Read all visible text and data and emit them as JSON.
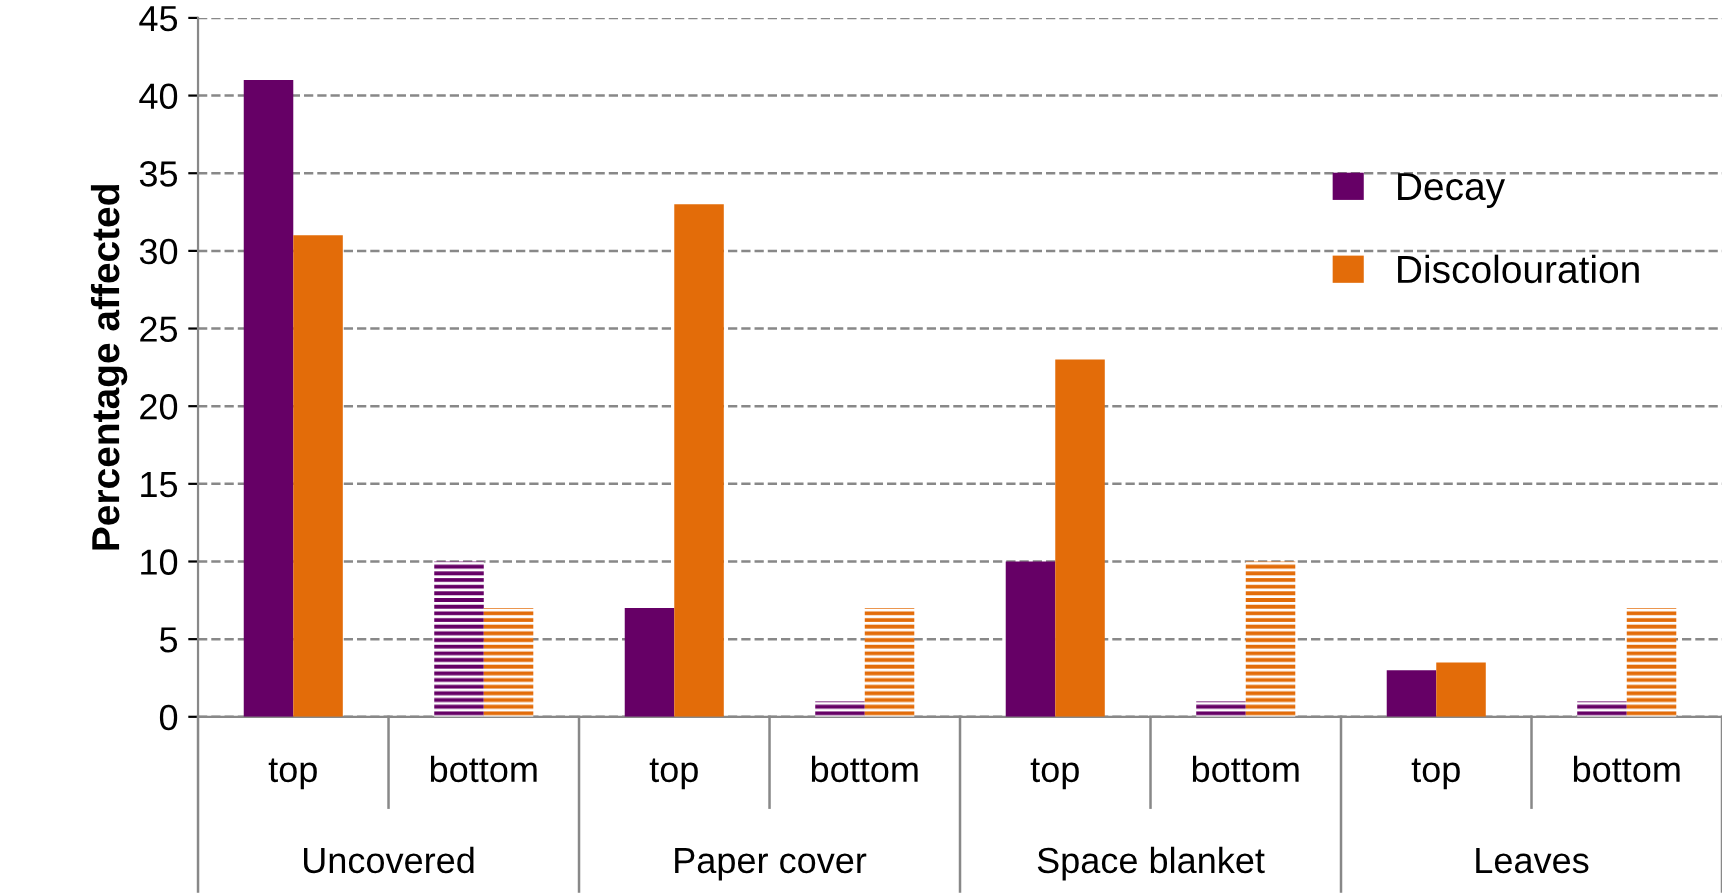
{
  "chart_data": {
    "type": "bar",
    "ylabel": "Percentage affected",
    "categories": [
      "top",
      "bottom",
      "top",
      "bottom",
      "top",
      "bottom",
      "top",
      "bottom"
    ],
    "annotations": [
      "Uncovered",
      "Paper cover",
      "Space blanket",
      "Leaves"
    ],
    "series": [
      {
        "name": "Decay",
        "color": "#660066",
        "values": [
          41,
          10,
          7,
          1,
          10,
          1,
          3,
          1
        ]
      },
      {
        "name": "Discolouration",
        "color": "#e36c09",
        "values": [
          31,
          7,
          33,
          7,
          23,
          10,
          3.5,
          7
        ]
      }
    ],
    "ylim": [
      0,
      45
    ],
    "yticks": [
      0,
      5,
      10,
      15,
      20,
      25,
      30,
      35,
      40,
      45
    ],
    "grid": "y",
    "legend": "top right"
  }
}
